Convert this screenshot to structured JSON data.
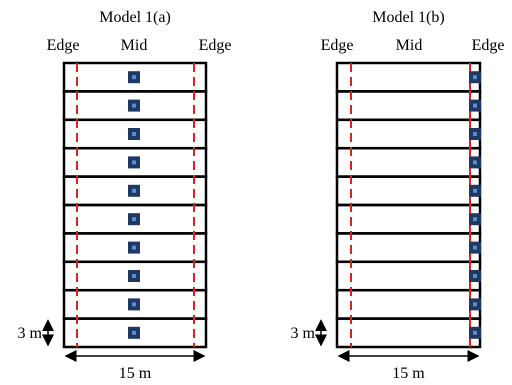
{
  "models": [
    {
      "title": "Model 1(a)",
      "labels": [
        "Edge",
        "Mid",
        "Edge"
      ],
      "height_label": "3 m",
      "width_label": "15 m"
    },
    {
      "title": "Model 1(b)",
      "labels": [
        "Edge",
        "Mid",
        "Edge"
      ],
      "height_label": "3 m",
      "width_label": "15 m"
    }
  ]
}
